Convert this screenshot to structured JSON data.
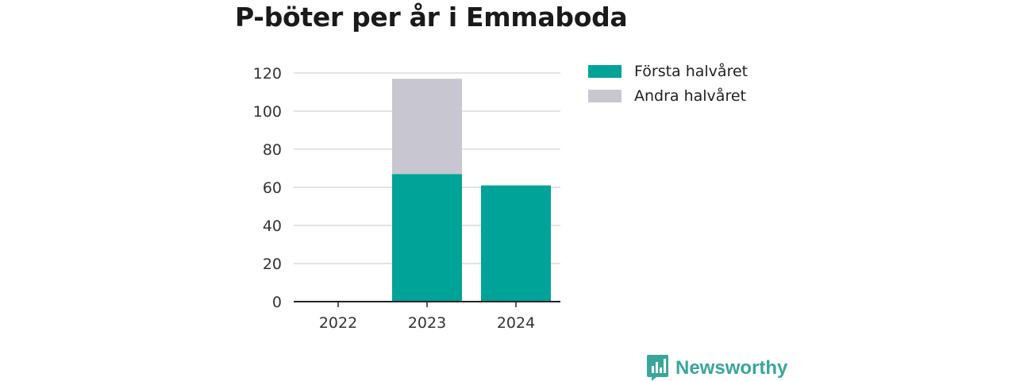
{
  "chart_data": {
    "type": "bar",
    "stacked": true,
    "title": "P-böter per år i Emmaboda",
    "categories": [
      "2022",
      "2023",
      "2024"
    ],
    "series": [
      {
        "name": "Första halvåret",
        "values": [
          0,
          67,
          61
        ],
        "color": "#00a398"
      },
      {
        "name": "Andra halvåret",
        "values": [
          0,
          50,
          0
        ],
        "color": "#c8c7d1"
      }
    ],
    "ylim": [
      0,
      120
    ],
    "yticks": [
      0,
      20,
      40,
      60,
      80,
      100,
      120
    ],
    "grid": true,
    "legend_position": "right"
  },
  "brand": {
    "label": "Newsworthy",
    "icon": "newsworthy-logo-icon",
    "color": "#3aa69b"
  }
}
